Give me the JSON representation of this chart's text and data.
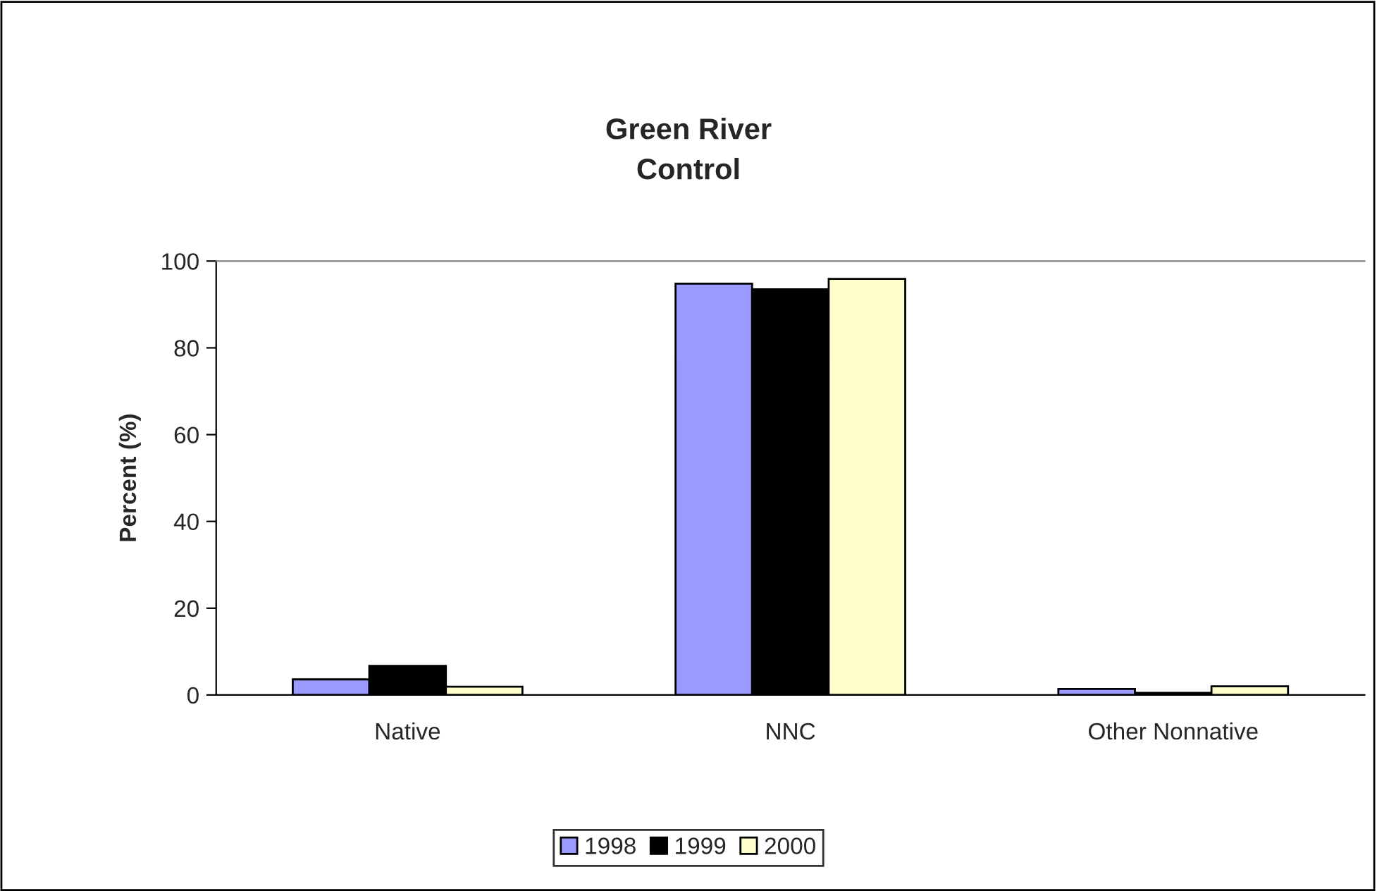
{
  "chart_data": {
    "type": "bar",
    "title": "Green River\nControl",
    "ylabel": "Percent (%)",
    "categories": [
      "Native",
      "NNC",
      "Other Nonnative"
    ],
    "series": [
      {
        "name": "1998",
        "color": "#9999ff",
        "values": [
          3.6,
          94.8,
          1.4
        ]
      },
      {
        "name": "1999",
        "color": "#000000",
        "values": [
          6.7,
          93.5,
          0.5
        ]
      },
      {
        "name": "2000",
        "color": "#ffffcc",
        "values": [
          1.9,
          95.9,
          2.0
        ]
      }
    ],
    "ylim": [
      0,
      100
    ],
    "yticks": [
      0,
      20,
      40,
      60,
      80,
      100
    ],
    "grid": false,
    "legend": "bottom"
  }
}
